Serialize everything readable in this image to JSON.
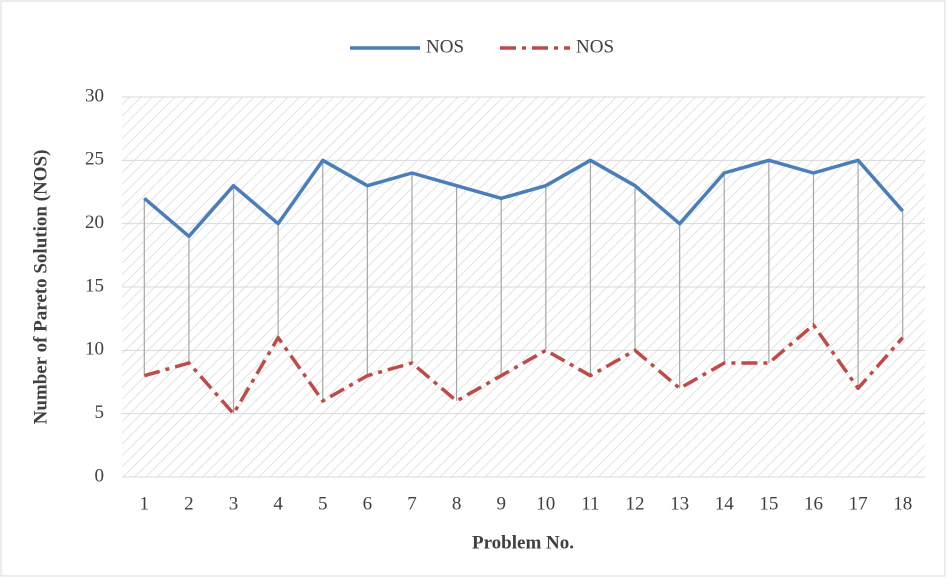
{
  "chart_data": {
    "type": "line",
    "xlabel": "Problem No.",
    "ylabel": "Number of Pareto Solution (NOS)",
    "categories": [
      "1",
      "2",
      "3",
      "4",
      "5",
      "6",
      "7",
      "8",
      "9",
      "10",
      "11",
      "12",
      "13",
      "14",
      "15",
      "16",
      "17",
      "18"
    ],
    "series": [
      {
        "name": "NOS",
        "color": "#4a7ebb",
        "dash": "solid",
        "values": [
          22,
          19,
          23,
          20,
          25,
          23,
          24,
          23,
          22,
          23,
          25,
          23,
          20,
          24,
          25,
          24,
          25,
          21
        ]
      },
      {
        "name": "NOS",
        "color": "#be4b48",
        "dash": "dashdot",
        "values": [
          8,
          9,
          5,
          11,
          6,
          8,
          9,
          6,
          8,
          10,
          8,
          10,
          7,
          9,
          9,
          12,
          7,
          11
        ]
      }
    ],
    "ylim": [
      0,
      30
    ],
    "yticks": [
      0,
      5,
      10,
      15,
      20,
      25,
      30
    ],
    "grid": true,
    "high_low_lines": true,
    "legend": "top"
  }
}
